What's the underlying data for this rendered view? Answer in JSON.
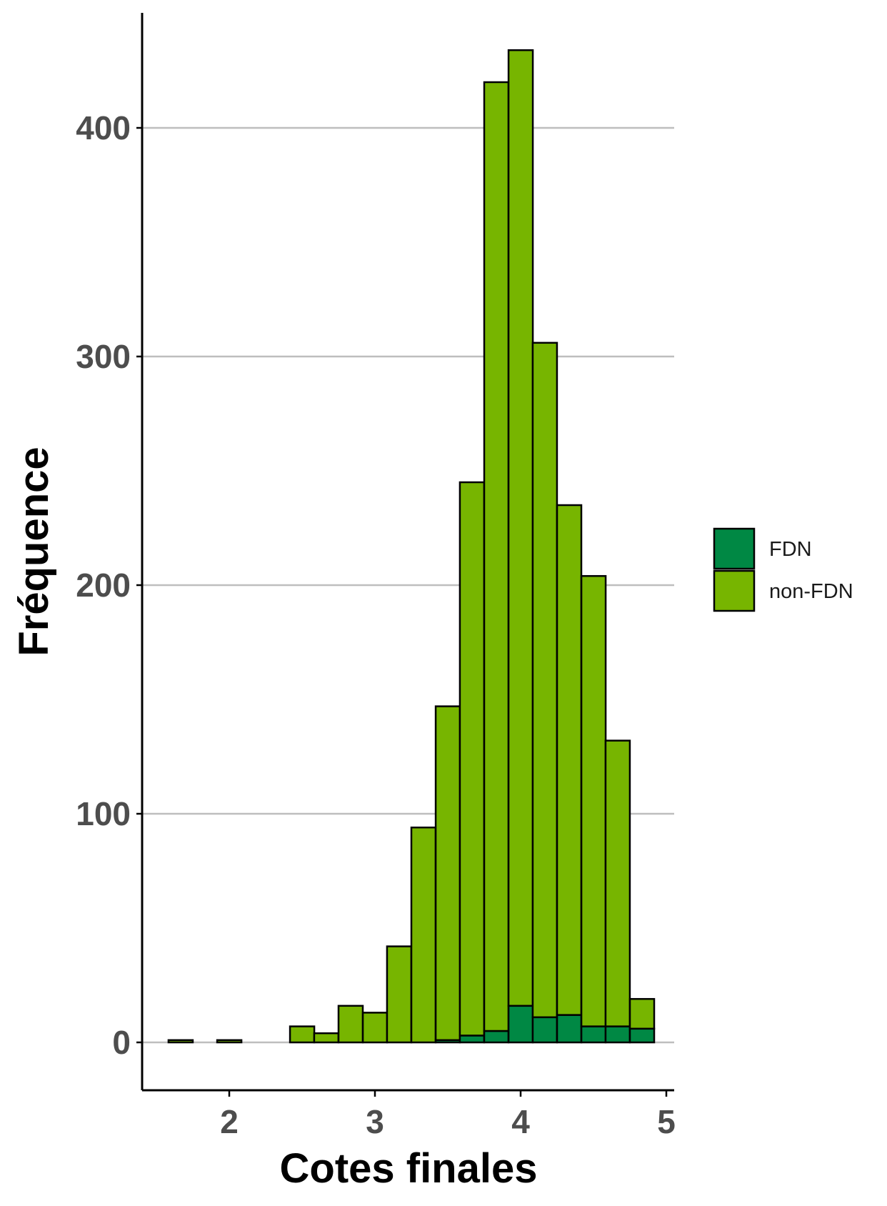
{
  "chart_data": {
    "type": "bar",
    "subtype": "stacked-histogram",
    "xlabel": "Cotes finales",
    "ylabel": "Fréquence",
    "xlim": [
      1.5,
      5.0
    ],
    "ylim": [
      -20,
      450
    ],
    "x_ticks": [
      2,
      3,
      4,
      5
    ],
    "y_ticks": [
      0,
      100,
      200,
      300,
      400
    ],
    "bin_width": 0.1667,
    "bins_start": [
      1.583,
      1.75,
      1.917,
      2.083,
      2.25,
      2.417,
      2.583,
      2.75,
      2.917,
      3.083,
      3.25,
      3.417,
      3.583,
      3.75,
      3.917,
      4.083,
      4.25,
      4.417,
      4.583,
      4.75
    ],
    "series": [
      {
        "name": "FDN",
        "color": "#008844",
        "values": [
          0,
          0,
          0,
          0,
          0,
          0,
          0,
          0,
          0,
          0,
          0,
          1,
          3,
          5,
          16,
          11,
          12,
          7,
          7,
          6
        ]
      },
      {
        "name": "non-FDN",
        "color": "#77b500",
        "values": [
          1,
          0,
          1,
          0,
          0,
          7,
          4,
          16,
          13,
          42,
          94,
          146,
          242,
          415,
          418,
          295,
          223,
          197,
          125,
          13
        ]
      }
    ],
    "grid": {
      "major_y": true,
      "major_x": false
    },
    "legend": {
      "position": "right"
    }
  }
}
